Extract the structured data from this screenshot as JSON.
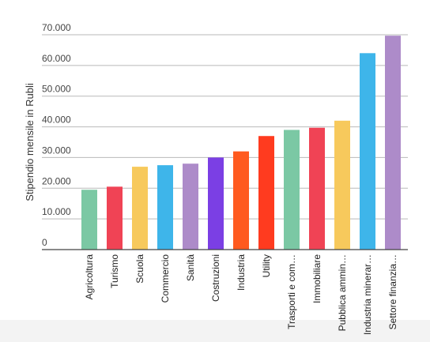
{
  "chart_data": {
    "type": "bar",
    "ylabel": "Stipendio mensile in Rubli",
    "ylim": [
      0,
      70000
    ],
    "y_ticks": [
      {
        "value": 0,
        "label": "0"
      },
      {
        "value": 10000,
        "label": "10.000"
      },
      {
        "value": 20000,
        "label": "20.000"
      },
      {
        "value": 30000,
        "label": "30.000"
      },
      {
        "value": 40000,
        "label": "40.000"
      },
      {
        "value": 50000,
        "label": "50.000"
      },
      {
        "value": 60000,
        "label": "60.000"
      },
      {
        "value": 70000,
        "label": "70.000"
      }
    ],
    "grid": true,
    "categories": [
      "Agricoltura",
      "Turismo",
      "Scuola",
      "Commercio",
      "Sanità",
      "Costruzioni",
      "Industria",
      "Utility",
      "Trasporti e com…",
      "Immobiliare",
      "Pubblica ammin…",
      "Industria minerar…",
      "Settore finanzia…"
    ],
    "values": [
      19500,
      20500,
      27000,
      27500,
      28000,
      30000,
      32000,
      37000,
      39000,
      39700,
      42000,
      64000,
      69700
    ],
    "colors": [
      "#7bc8a4",
      "#f04355",
      "#f7c95c",
      "#3eb5ea",
      "#ad8bc9",
      "#7b3fe4",
      "#ff5a1f",
      "#ff3b1f",
      "#7bc8a4",
      "#f04355",
      "#f7c95c",
      "#3eb5ea",
      "#ad8bc9"
    ]
  }
}
